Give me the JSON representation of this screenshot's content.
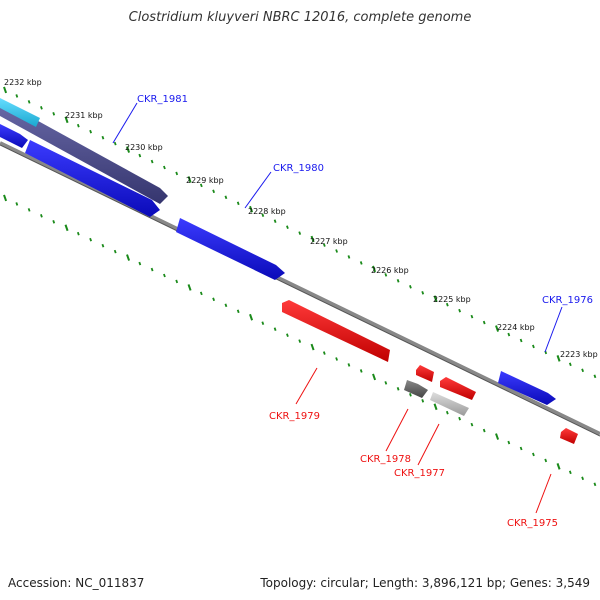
{
  "title": "Clostridium kluyveri NBRC 12016, complete genome",
  "footer": {
    "accession": "Accession: NC_011837",
    "summary": "Topology: circular; Length: 3,896,121 bp; Genes: 3,549"
  },
  "scale_labels": [
    "2232 kbp",
    "2231 kbp",
    "2230 kbp",
    "2229 kbp",
    "2228 kbp",
    "2227 kbp",
    "2226 kbp",
    "2225 kbp",
    "2224 kbp",
    "2223 kbp"
  ],
  "gene_labels": {
    "ckr1981": "CKR_1981",
    "ckr1980": "CKR_1980",
    "ckr1976": "CKR_1976",
    "ckr1979": "CKR_1979",
    "ckr1978": "CKR_1978",
    "ckr1977": "CKR_1977",
    "ckr1975": "CKR_1975"
  },
  "colors": {
    "forward": "#1a1aee",
    "reverse": "#ee1111",
    "navy": "#4a4a8c",
    "cyan": "#33ccee",
    "grey_dark": "#666666",
    "grey_light": "#bbbbbb",
    "backbone": "#888888",
    "tick": "#1a8a1a"
  }
}
